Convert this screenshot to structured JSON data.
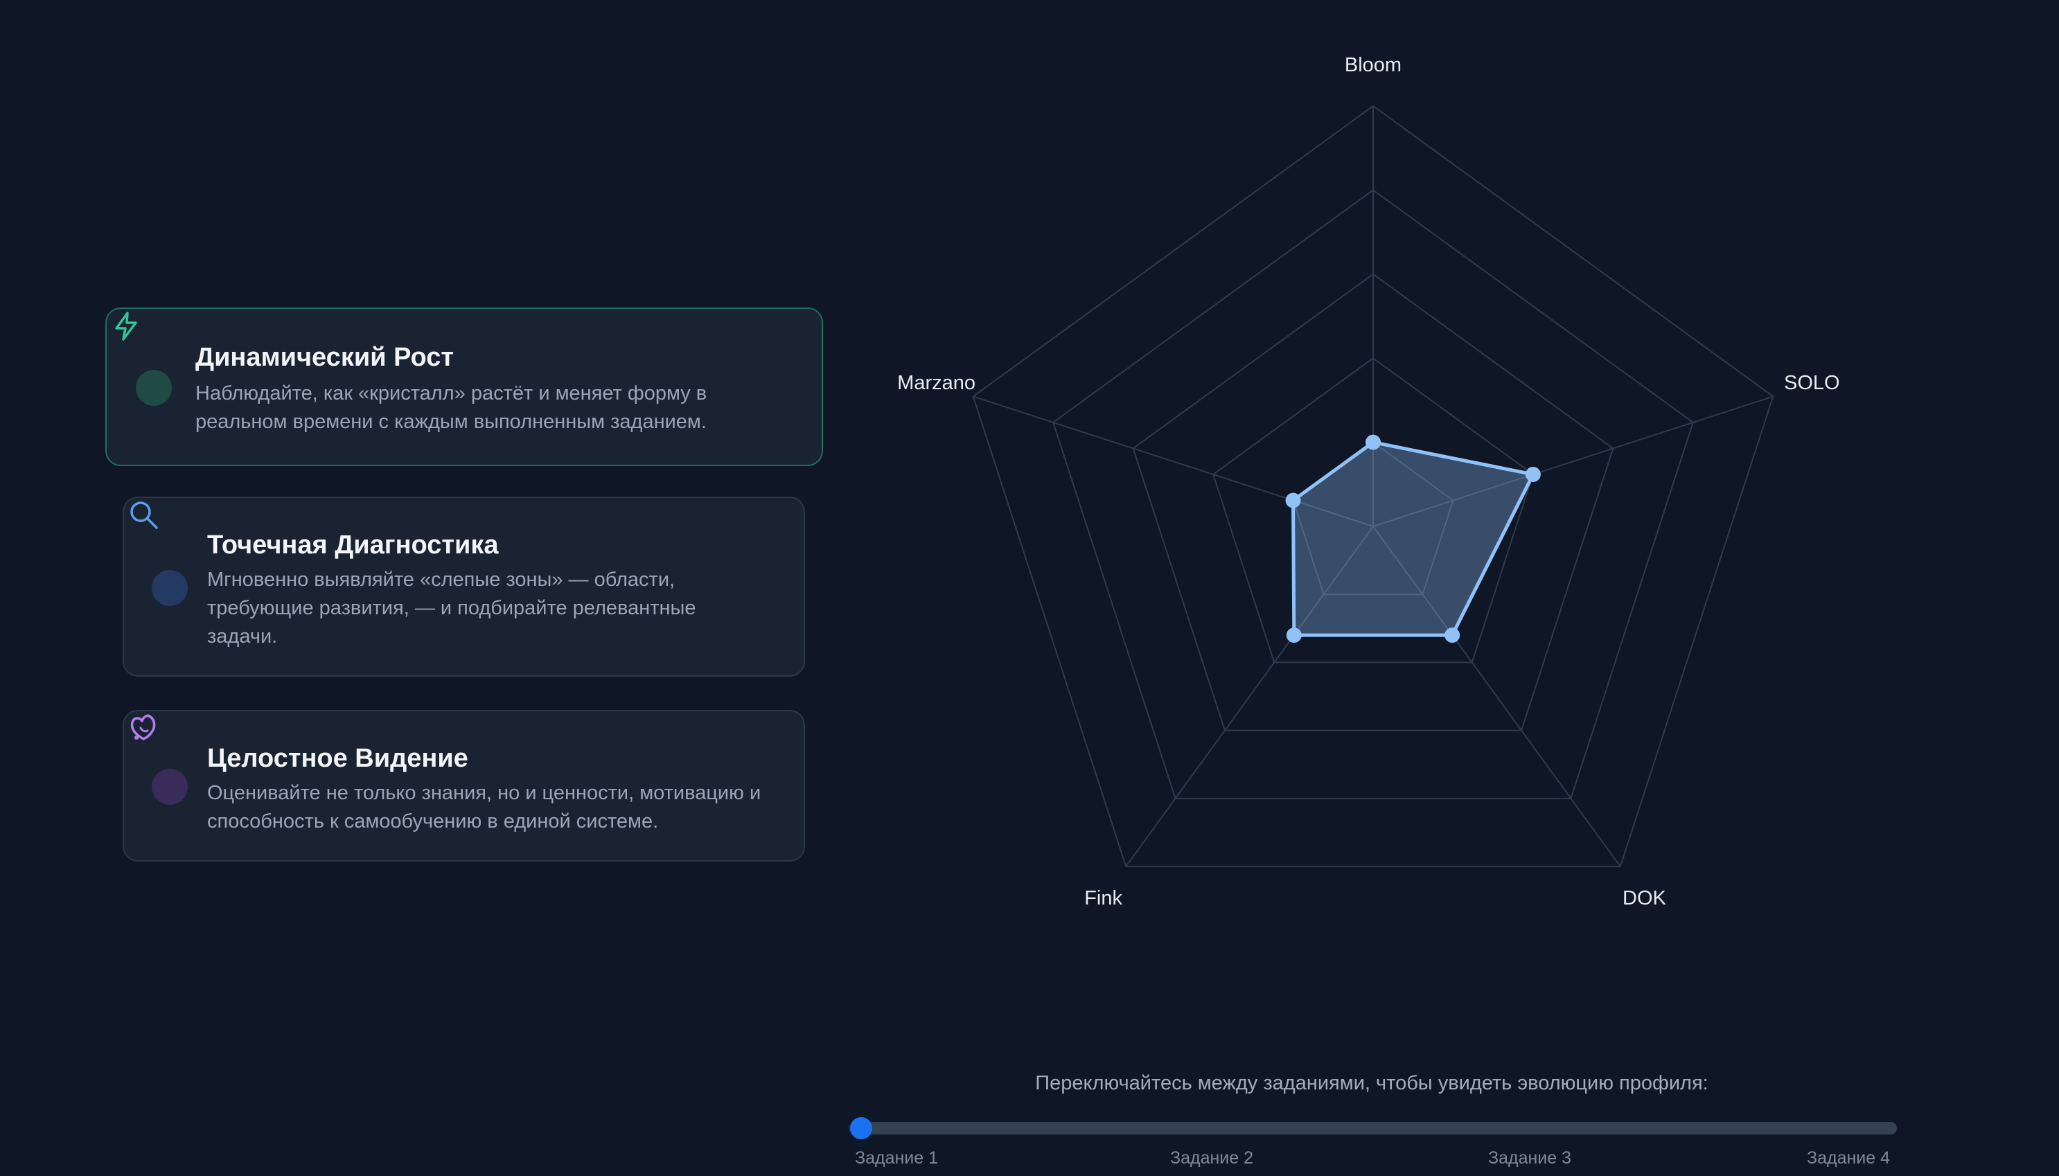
{
  "features": [
    {
      "title": "Динамический Рост",
      "desc": "Наблюдайте, как «кристалл» растёт и меняет форму в реальном времени с каждым выполненным заданием.",
      "icon": "lightning-icon",
      "accent": "#2fc79a",
      "dot_color": "#1f4a45",
      "active": true
    },
    {
      "title": "Точечная Диагностика",
      "desc": "Мгновенно выявляйте «слепые зоны» — области, требующие развития, — и подбирайте релевантные задачи.",
      "icon": "magnifier-icon",
      "accent": "#5aa0ee",
      "dot_color": "#243a63",
      "active": false
    },
    {
      "title": "Целостное Видение",
      "desc": "Оценивайте не только знания, но и ценности, мотивацию и способность к самообучению в единой системе.",
      "icon": "heart-sprout-icon",
      "accent": "#b67df2",
      "dot_color": "#3a2c5a",
      "active": false
    }
  ],
  "chart_data": {
    "type": "radar",
    "axes": [
      "Bloom",
      "SOLO",
      "DOK",
      "Fink",
      "Marzano"
    ],
    "range": [
      0,
      5
    ],
    "rings": 5,
    "series": [
      {
        "values": [
          1,
          2,
          1.6,
          1.6,
          1
        ],
        "color": "#90c2f8"
      }
    ]
  },
  "slider": {
    "caption": "Переключайтесь между заданиями, чтобы увидеть эволюцию профиля:",
    "labels": [
      "Задание 1",
      "Задание 2",
      "Задание 3",
      "Задание 4"
    ],
    "value": 1
  },
  "colors": {
    "background": "#0f1726",
    "card": "#1a2331",
    "grid": "#2f3b4b",
    "slider_thumb": "#1a72f0"
  }
}
